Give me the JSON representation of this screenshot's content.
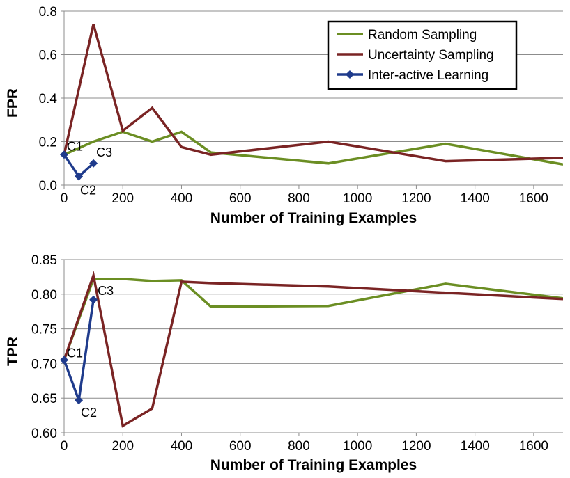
{
  "chart_data": [
    {
      "type": "line",
      "xlabel": "Number of Training Examples",
      "ylabel": "FPR",
      "xlim": [
        0,
        1700
      ],
      "ylim": [
        0,
        0.8
      ],
      "xticks": [
        0,
        200,
        400,
        600,
        800,
        1000,
        1200,
        1400,
        1600
      ],
      "yticks": [
        0.0,
        0.2,
        0.4,
        0.6,
        0.8
      ],
      "xtick_labels": [
        "0",
        "200",
        "400",
        "600",
        "800",
        "1000",
        "1200",
        "1400",
        "1600"
      ],
      "ytick_labels": [
        "0.0",
        "0.2",
        "0.4",
        "0.6",
        "0.8"
      ],
      "grid": "horizontal",
      "legend": "top-right",
      "series": [
        {
          "name": "Random Sampling",
          "color": "#6b8e23",
          "marker": "none",
          "x": [
            0,
            100,
            200,
            300,
            400,
            500,
            900,
            1300,
            1700
          ],
          "y": [
            0.14,
            0.2,
            0.245,
            0.2,
            0.245,
            0.15,
            0.1,
            0.19,
            0.095
          ]
        },
        {
          "name": "Uncertainty Sampling",
          "color": "#7a2424",
          "marker": "none",
          "x": [
            0,
            100,
            200,
            300,
            400,
            500,
            900,
            1300,
            1700
          ],
          "y": [
            0.14,
            0.74,
            0.25,
            0.355,
            0.175,
            0.14,
            0.2,
            0.11,
            0.125
          ]
        },
        {
          "name": "Inter-active Learning",
          "color": "#1f3b8c",
          "marker": "diamond",
          "x": [
            0,
            50,
            100
          ],
          "y": [
            0.14,
            0.04,
            0.1
          ]
        }
      ],
      "annotations": [
        {
          "text": "C1",
          "x": 0,
          "y": 0.14
        },
        {
          "text": "C2",
          "x": 50,
          "y": 0.04
        },
        {
          "text": "C3",
          "x": 100,
          "y": 0.1
        }
      ]
    },
    {
      "type": "line",
      "xlabel": "Number of Training Examples",
      "ylabel": "TPR",
      "xlim": [
        0,
        1700
      ],
      "ylim": [
        0.6,
        0.85
      ],
      "xticks": [
        0,
        200,
        400,
        600,
        800,
        1000,
        1200,
        1400,
        1600
      ],
      "yticks": [
        0.6,
        0.65,
        0.7,
        0.75,
        0.8,
        0.85
      ],
      "xtick_labels": [
        "0",
        "200",
        "400",
        "600",
        "800",
        "1000",
        "1200",
        "1400",
        "1600"
      ],
      "ytick_labels": [
        "0.60",
        "0.65",
        "0.70",
        "0.75",
        "0.80",
        "0.85"
      ],
      "grid": "horizontal",
      "legend": "none",
      "series": [
        {
          "name": "Random Sampling",
          "color": "#6b8e23",
          "marker": "none",
          "x": [
            0,
            100,
            200,
            300,
            400,
            500,
            900,
            1300,
            1700
          ],
          "y": [
            0.705,
            0.822,
            0.822,
            0.819,
            0.82,
            0.782,
            0.783,
            0.815,
            0.794
          ]
        },
        {
          "name": "Uncertainty Sampling",
          "color": "#7a2424",
          "marker": "none",
          "x": [
            0,
            100,
            200,
            300,
            400,
            500,
            900,
            1300,
            1700
          ],
          "y": [
            0.705,
            0.827,
            0.61,
            0.635,
            0.818,
            0.816,
            0.811,
            0.802,
            0.793
          ]
        },
        {
          "name": "Inter-active Learning",
          "color": "#1f3b8c",
          "marker": "diamond",
          "x": [
            0,
            50,
            100
          ],
          "y": [
            0.705,
            0.647,
            0.792
          ]
        }
      ],
      "annotations": [
        {
          "text": "C1",
          "x": 0,
          "y": 0.705
        },
        {
          "text": "C2",
          "x": 50,
          "y": 0.647
        },
        {
          "text": "C3",
          "x": 100,
          "y": 0.792
        }
      ]
    }
  ]
}
